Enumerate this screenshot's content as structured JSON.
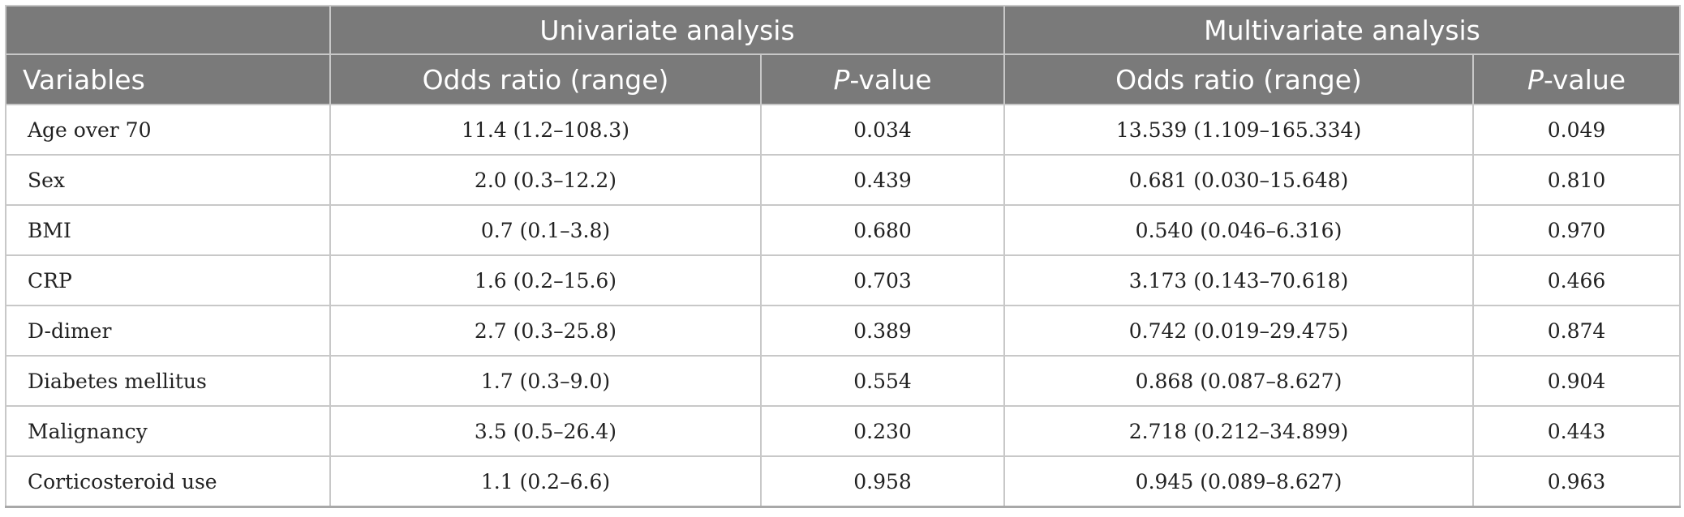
{
  "header": {
    "group_univariate": "Univariate analysis",
    "group_multivariate": "Multivariate analysis",
    "col_variables": "Variables",
    "col_or_uni": "Odds ratio (range)",
    "col_p_uni_italic": "P",
    "col_p_uni_rest": "-value",
    "col_or_multi": "Odds ratio (range)",
    "col_p_multi_italic": "P",
    "col_p_multi_rest": "-value"
  },
  "rows": [
    {
      "variable": "Age over 70",
      "or_uni": "11.4 (1.2–108.3)",
      "p_uni": "0.034",
      "or_multi": "13.539 (1.109–165.334)",
      "p_multi": "0.049"
    },
    {
      "variable": "Sex",
      "or_uni": "2.0 (0.3–12.2)",
      "p_uni": "0.439",
      "or_multi": "0.681 (0.030–15.648)",
      "p_multi": "0.810"
    },
    {
      "variable": "BMI",
      "or_uni": "0.7 (0.1–3.8)",
      "p_uni": "0.680",
      "or_multi": "0.540 (0.046–6.316)",
      "p_multi": "0.970"
    },
    {
      "variable": "CRP",
      "or_uni": "1.6 (0.2–15.6)",
      "p_uni": "0.703",
      "or_multi": "3.173 (0.143–70.618)",
      "p_multi": "0.466"
    },
    {
      "variable": "D-dimer",
      "or_uni": "2.7 (0.3–25.8)",
      "p_uni": "0.389",
      "or_multi": "0.742 (0.019–29.475)",
      "p_multi": "0.874"
    },
    {
      "variable": "Diabetes mellitus",
      "or_uni": "1.7 (0.3–9.0)",
      "p_uni": "0.554",
      "or_multi": "0.868 (0.087–8.627)",
      "p_multi": "0.904"
    },
    {
      "variable": "Malignancy",
      "or_uni": "3.5 (0.5–26.4)",
      "p_uni": "0.230",
      "or_multi": "2.718 (0.212–34.899)",
      "p_multi": "0.443"
    },
    {
      "variable": "Corticosteroid use",
      "or_uni": "1.1 (0.2–6.6)",
      "p_uni": "0.958",
      "or_multi": "0.945 (0.089–8.627)",
      "p_multi": "0.963"
    }
  ]
}
